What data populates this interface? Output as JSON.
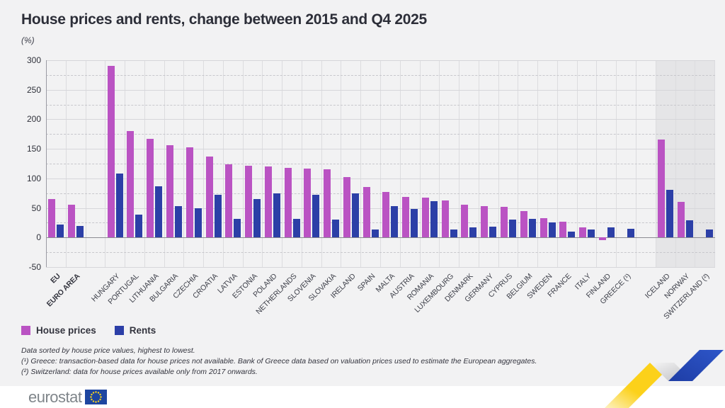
{
  "footer": {
    "brand": "eurostat"
  },
  "footnotes": [
    "Data sorted by house price values, highest to lowest.",
    "(¹) Greece: transaction-based data for house prices not available. Bank of Greece data based on valuation prices used to estimate the European aggregates.",
    "(²) Switzerland: data for house prices available only from 2017 onwards."
  ],
  "colors": {
    "house_prices": "#ba53c3",
    "rents": "#2c3fa7",
    "shaded_region": "#e5e5e7",
    "page_background": "#f2f2f3",
    "eu_flag_blue": "#1e46a0",
    "eu_flag_stars": "#ffd617",
    "ribbon_yellow": "#fcd11a",
    "ribbon_blue": "#2446ae"
  },
  "chart_data": {
    "type": "bar",
    "title": "House prices and rents, change between 2015 and Q4 2025",
    "unit": "(%)",
    "xlabel": "",
    "ylabel": "%",
    "ylim": [
      -50,
      300
    ],
    "yticks": [
      300,
      250,
      200,
      150,
      100,
      50,
      0,
      -50
    ],
    "minor_grid_step": 25,
    "grid": "horizontal solid every 50, dashed every 25, vertical line per category",
    "legend_position": "bottom-left",
    "series": [
      {
        "name": "House prices",
        "key": "house",
        "color": "#ba53c3"
      },
      {
        "name": "Rents",
        "key": "rent",
        "color": "#2c3fa7"
      }
    ],
    "columns": [
      {
        "label": "EU",
        "house": 65,
        "rent": 22,
        "bold": true
      },
      {
        "label": "EURO AREA",
        "house": 56,
        "rent": 20,
        "bold": true
      },
      {
        "spacer": true
      },
      {
        "label": "HUNGARY",
        "house": 290,
        "rent": 108
      },
      {
        "label": "PORTUGAL",
        "house": 180,
        "rent": 39
      },
      {
        "label": "LITHUANIA",
        "house": 167,
        "rent": 87
      },
      {
        "label": "BULGARIA",
        "house": 156,
        "rent": 53
      },
      {
        "label": "CZECHIA",
        "house": 153,
        "rent": 50
      },
      {
        "label": "CROATIA",
        "house": 137,
        "rent": 72
      },
      {
        "label": "LATVIA",
        "house": 124,
        "rent": 31
      },
      {
        "label": "ESTONIA",
        "house": 121,
        "rent": 65
      },
      {
        "label": "POLAND",
        "house": 120,
        "rent": 75
      },
      {
        "label": "NETHERLANDS",
        "house": 118,
        "rent": 32
      },
      {
        "label": "SLOVENIA",
        "house": 117,
        "rent": 72
      },
      {
        "label": "SLOVAKIA",
        "house": 115,
        "rent": 30
      },
      {
        "label": "IRELAND",
        "house": 102,
        "rent": 75
      },
      {
        "label": "SPAIN",
        "house": 86,
        "rent": 14
      },
      {
        "label": "MALTA",
        "house": 77,
        "rent": 53
      },
      {
        "label": "AUSTRIA",
        "house": 69,
        "rent": 48
      },
      {
        "label": "ROMANIA",
        "house": 68,
        "rent": 62
      },
      {
        "label": "LUXEMBOURG",
        "house": 63,
        "rent": 14
      },
      {
        "label": "DENMARK",
        "house": 56,
        "rent": 17
      },
      {
        "label": "GERMANY",
        "house": 53,
        "rent": 18
      },
      {
        "label": "CYPRUS",
        "house": 52,
        "rent": 30
      },
      {
        "label": "BELGIUM",
        "house": 45,
        "rent": 31
      },
      {
        "label": "SWEDEN",
        "house": 33,
        "rent": 26
      },
      {
        "label": "FRANCE",
        "house": 27,
        "rent": 10
      },
      {
        "label": "ITALY",
        "house": 17,
        "rent": 13
      },
      {
        "label": "FINLAND",
        "house": -4,
        "rent": 17
      },
      {
        "label": "GREECE (¹)",
        "house": null,
        "rent": 15
      },
      {
        "spacer": true
      },
      {
        "label": "ICELAND",
        "house": 166,
        "rent": 81,
        "shaded": true
      },
      {
        "label": "NORWAY",
        "house": 60,
        "rent": 29,
        "shaded": true
      },
      {
        "label": "SWITZERLAND (²)",
        "house": null,
        "rent": 13,
        "shaded": true
      }
    ]
  }
}
